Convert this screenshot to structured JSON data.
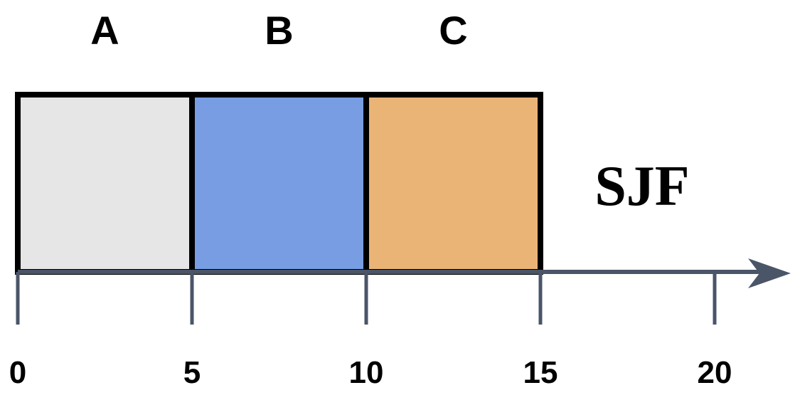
{
  "policy": "SJF",
  "jobs": [
    {
      "name": "A",
      "start": 0,
      "end": 5,
      "color": "#e6e6e6"
    },
    {
      "name": "B",
      "start": 5,
      "end": 10,
      "color": "#789de3"
    },
    {
      "name": "C",
      "start": 10,
      "end": 15,
      "color": "#ebb477"
    }
  ],
  "axis": {
    "ticks": [
      0,
      5,
      10,
      15,
      20
    ],
    "tick_labels": [
      "0",
      "5",
      "10",
      "15",
      "20"
    ],
    "color": "#4a5568"
  }
}
